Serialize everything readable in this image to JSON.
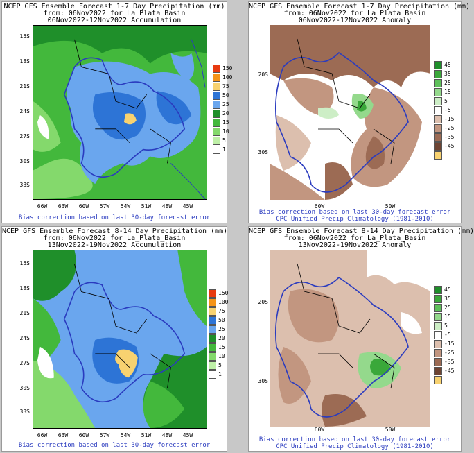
{
  "panels": [
    {
      "title_line1": "NCEP GFS Ensemble Forecast 1-7 Day Precipitation (mm)",
      "title_line2": "from: 06Nov2022   for La_Plata_Basin",
      "title_line3": "06Nov2022-12Nov2022 Accumulation",
      "lat_labels": [
        "15S",
        "18S",
        "21S",
        "24S",
        "27S",
        "30S",
        "33S"
      ],
      "lon_labels": [
        "66W",
        "63W",
        "60W",
        "57W",
        "54W",
        "51W",
        "48W",
        "45W"
      ],
      "legend": [
        {
          "label": "150",
          "color": "#e83a10"
        },
        {
          "label": "100",
          "color": "#f59418"
        },
        {
          "label": "75",
          "color": "#f8d270"
        },
        {
          "label": "50",
          "color": "#2d74d6"
        },
        {
          "label": "25",
          "color": "#6aa6ee"
        },
        {
          "label": "20",
          "color": "#1f8f2a"
        },
        {
          "label": "15",
          "color": "#43b83c"
        },
        {
          "label": "10",
          "color": "#84d96c"
        },
        {
          "label": "5",
          "color": "#bff0a8"
        },
        {
          "label": "1",
          "color": "#ffffff"
        }
      ],
      "footer_line1": "Bias correction based on last 30-day forecast error",
      "footer_line2": ""
    },
    {
      "title_line1": "NCEP GFS Ensemble Forecast 1-7 Day Precipitation (mm)",
      "title_line2": "from: 06Nov2022   for La_Plata_Basin",
      "title_line3": "06Nov2022-12Nov2022 Anomaly",
      "lat_labels": [
        "20S",
        "30S"
      ],
      "lon_labels": [
        "60W",
        "50W"
      ],
      "legend": [
        {
          "label": "45",
          "color": "#1e8f2a"
        },
        {
          "label": "35",
          "color": "#3aa83a"
        },
        {
          "label": "25",
          "color": "#5ec05a"
        },
        {
          "label": "15",
          "color": "#94d98c"
        },
        {
          "label": "5",
          "color": "#cdeec6"
        },
        {
          "label": "-5",
          "color": "#ffffff"
        },
        {
          "label": "-15",
          "color": "#dcbfae"
        },
        {
          "label": "-25",
          "color": "#c29680"
        },
        {
          "label": "-35",
          "color": "#9c6b54"
        },
        {
          "label": "-45",
          "color": "#6e4433"
        },
        {
          "label": "",
          "color": "#f8d270"
        }
      ],
      "footer_line1": "Bias correction based on last 30-day forecast error",
      "footer_line2": "CPC Unified Precip Climatology (1981-2010)"
    },
    {
      "title_line1": "NCEP GFS Ensemble Forecast 8-14 Day Precipitation (mm)",
      "title_line2": "from: 06Nov2022   for La_Plata_Basin",
      "title_line3": "13Nov2022-19Nov2022 Accumulation",
      "lat_labels": [
        "15S",
        "18S",
        "21S",
        "24S",
        "27S",
        "30S",
        "33S"
      ],
      "lon_labels": [
        "66W",
        "63W",
        "60W",
        "57W",
        "54W",
        "51W",
        "48W",
        "45W"
      ],
      "legend": [
        {
          "label": "150",
          "color": "#e83a10"
        },
        {
          "label": "100",
          "color": "#f59418"
        },
        {
          "label": "75",
          "color": "#f8d270"
        },
        {
          "label": "50",
          "color": "#2d74d6"
        },
        {
          "label": "25",
          "color": "#6aa6ee"
        },
        {
          "label": "20",
          "color": "#1f8f2a"
        },
        {
          "label": "15",
          "color": "#43b83c"
        },
        {
          "label": "10",
          "color": "#84d96c"
        },
        {
          "label": "5",
          "color": "#bff0a8"
        },
        {
          "label": "1",
          "color": "#ffffff"
        }
      ],
      "footer_line1": "Bias correction based on last 30-day forecast error",
      "footer_line2": ""
    },
    {
      "title_line1": "NCEP GFS Ensemble Forecast 8-14 Day Precipitation (mm)",
      "title_line2": "from: 06Nov2022   for La_Plata_Basin",
      "title_line3": "13Nov2022-19Nov2022 Anomaly",
      "lat_labels": [
        "20S",
        "30S"
      ],
      "lon_labels": [
        "60W",
        "50W"
      ],
      "legend": [
        {
          "label": "45",
          "color": "#1e8f2a"
        },
        {
          "label": "35",
          "color": "#3aa83a"
        },
        {
          "label": "25",
          "color": "#5ec05a"
        },
        {
          "label": "15",
          "color": "#94d98c"
        },
        {
          "label": "5",
          "color": "#cdeec6"
        },
        {
          "label": "-5",
          "color": "#ffffff"
        },
        {
          "label": "-15",
          "color": "#dcbfae"
        },
        {
          "label": "-25",
          "color": "#c29680"
        },
        {
          "label": "-35",
          "color": "#9c6b54"
        },
        {
          "label": "-45",
          "color": "#6e4433"
        },
        {
          "label": "",
          "color": "#f8d270"
        }
      ],
      "footer_line1": "Bias correction based on last 30-day forecast error",
      "footer_line2": "CPC Unified Precip Climatology (1981-2010)"
    }
  ]
}
